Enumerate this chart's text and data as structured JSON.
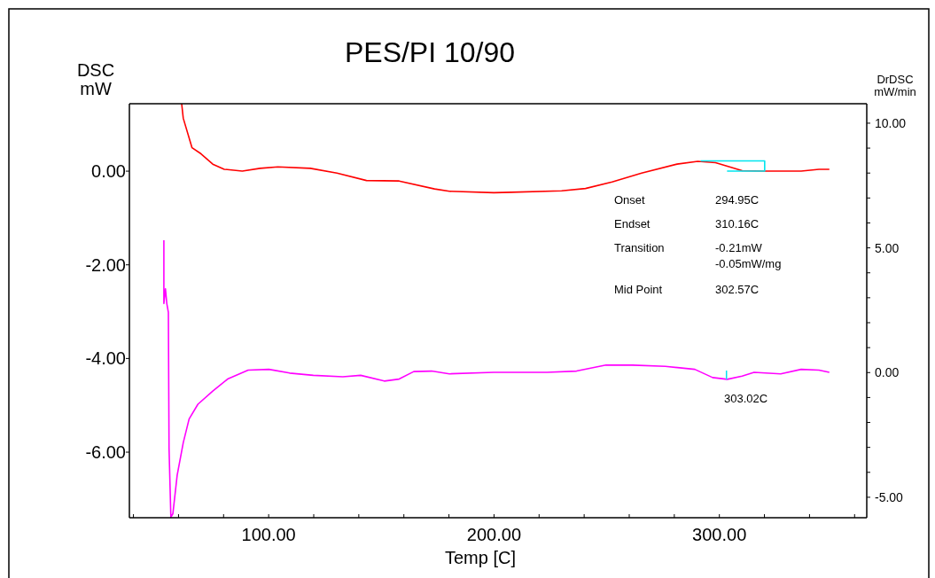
{
  "chart_data": {
    "type": "line",
    "title": "PES/PI 10/90",
    "xlabel": "Temp  [C]",
    "ylabel": "DSC\nmW",
    "y2label": "DrDSC\nmW/min",
    "xlim": [
      38.2,
      365.4
    ],
    "xticks": [
      {
        "value": 40,
        "label": null
      },
      {
        "value": 60,
        "label": null
      },
      {
        "value": 80,
        "label": null
      },
      {
        "value": 100,
        "label": "100.00"
      },
      {
        "value": 120,
        "label": null
      },
      {
        "value": 140,
        "label": null
      },
      {
        "value": 160,
        "label": null
      },
      {
        "value": 180,
        "label": null
      },
      {
        "value": 200,
        "label": "200.00"
      },
      {
        "value": 220,
        "label": null
      },
      {
        "value": 240,
        "label": null
      },
      {
        "value": 260,
        "label": null
      },
      {
        "value": 280,
        "label": null
      },
      {
        "value": 300,
        "label": "300.00"
      },
      {
        "value": 320,
        "label": null
      },
      {
        "value": 340,
        "label": null
      },
      {
        "value": 360,
        "label": null
      }
    ],
    "ylim": [
      -7.4,
      1.44
    ],
    "yticks": [
      {
        "value": 0,
        "label": "0.00"
      },
      {
        "value": -2,
        "label": "-2.00"
      },
      {
        "value": -4,
        "label": "-4.00"
      },
      {
        "value": -6,
        "label": "-6.00"
      }
    ],
    "y2lim": [
      -5.82,
      10.78
    ],
    "y2ticks": [
      {
        "value": -5,
        "label": "-5.00"
      },
      {
        "value": -4,
        "label": null
      },
      {
        "value": -3,
        "label": null
      },
      {
        "value": -2,
        "label": null
      },
      {
        "value": -1,
        "label": null
      },
      {
        "value": 0,
        "label": "0.00"
      },
      {
        "value": 1,
        "label": null
      },
      {
        "value": 2,
        "label": null
      },
      {
        "value": 3,
        "label": null
      },
      {
        "value": 4,
        "label": null
      },
      {
        "value": 5,
        "label": "5.00"
      },
      {
        "value": 6,
        "label": null
      },
      {
        "value": 7,
        "label": null
      },
      {
        "value": 8,
        "label": null
      },
      {
        "value": 9,
        "label": null
      },
      {
        "value": 10,
        "label": "10.00"
      }
    ],
    "grid": false,
    "marker": "none",
    "line_style": "solid",
    "series": [
      {
        "color": "#ff0000",
        "x": [
          61.4,
          62.1,
          66.0,
          70.0,
          75.2,
          80.3,
          88.3,
          96.2,
          104.1,
          118.5,
          130.3,
          143.4,
          157.9,
          173.6,
          180.2,
          199.9,
          207.7,
          230.0,
          240.6,
          252.4,
          265.5,
          281.2,
          290.4,
          298.3,
          310.1,
          320.6,
          336.3,
          344.2,
          348.8
        ],
        "values": [
          1.44,
          1.13,
          0.5,
          0.37,
          0.15,
          0.04,
          0.0,
          0.06,
          0.09,
          0.06,
          -0.04,
          -0.2,
          -0.21,
          -0.38,
          -0.43,
          -0.46,
          -0.45,
          -0.42,
          -0.37,
          -0.23,
          -0.04,
          0.15,
          0.21,
          0.18,
          0.01,
          0.0,
          0.0,
          0.04,
          0.04
        ]
      },
      {
        "color": "#ff00ff",
        "axis": "y2",
        "x": [
          53.5,
          53.5,
          54.2,
          54.8,
          55.5,
          55.8,
          56.6,
          57.5,
          59.4,
          62.1,
          64.7,
          68.6,
          75.2,
          81.8,
          90.9,
          100.1,
          109.3,
          119.8,
          132.9,
          140.8,
          151.3,
          157.9,
          164.4,
          172.3,
          180.2,
          199.9,
          223.5,
          236.6,
          249.7,
          261.5,
          276.0,
          289.1,
          297.0,
          303.5,
          310.1,
          315.4,
          327.2,
          336.3,
          344.2,
          348.8
        ],
        "values": [
          5.31,
          2.77,
          3.36,
          2.77,
          2.41,
          -3.05,
          -5.8,
          -5.66,
          -4.12,
          -2.81,
          -1.86,
          -1.27,
          -0.74,
          -0.26,
          0.1,
          0.13,
          -0.02,
          -0.11,
          -0.17,
          -0.11,
          -0.34,
          -0.26,
          0.04,
          0.06,
          -0.05,
          0.01,
          0.01,
          0.06,
          0.3,
          0.3,
          0.25,
          0.13,
          -0.2,
          -0.27,
          -0.14,
          0.01,
          -0.05,
          0.13,
          0.1,
          0.01
        ]
      },
      {
        "color": "#00e5ee",
        "x": [
          291.7,
          320.1,
          320.1,
          303.4
        ],
        "values": [
          0.22,
          0.22,
          0.0,
          0.0
        ]
      }
    ],
    "annotations": [
      "Onset",
      "294.95C",
      "Endset",
      "310.16C",
      "Transition",
      "-0.21mW\n-0.05mW/mg",
      "Mid Point",
      "302.57C",
      "303.02C"
    ]
  }
}
